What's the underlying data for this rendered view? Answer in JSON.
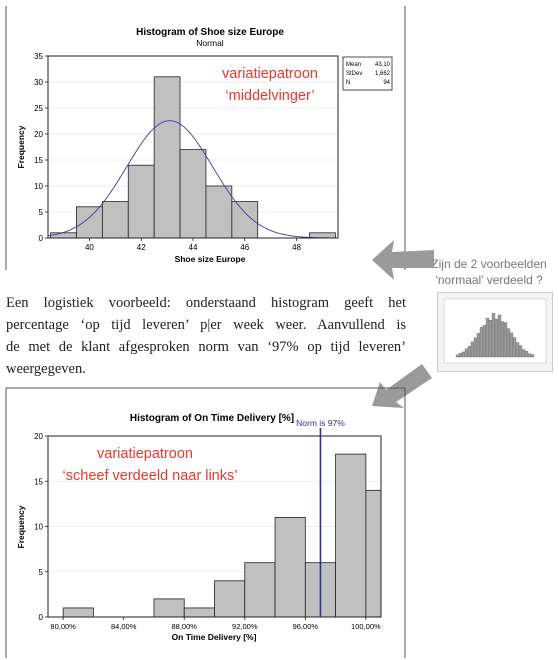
{
  "chart_data": [
    {
      "type": "bar",
      "title": "Histogram of Shoe size Europe",
      "subtitle": "Normal",
      "xlabel": "Shoe size Europe",
      "ylabel": "Frequency",
      "xlim": [
        38.4,
        49.6
      ],
      "ylim": [
        0,
        35
      ],
      "xticks": [
        40,
        42,
        44,
        46,
        48
      ],
      "yticks": [
        0,
        5,
        10,
        15,
        20,
        25,
        30,
        35
      ],
      "bins": [
        {
          "x0": 38.5,
          "x1": 39.5,
          "value": 1
        },
        {
          "x0": 39.5,
          "x1": 40.5,
          "value": 6
        },
        {
          "x0": 40.5,
          "x1": 41.5,
          "value": 7
        },
        {
          "x0": 41.5,
          "x1": 42.5,
          "value": 14
        },
        {
          "x0": 42.5,
          "x1": 43.5,
          "value": 31
        },
        {
          "x0": 43.5,
          "x1": 44.5,
          "value": 17
        },
        {
          "x0": 44.5,
          "x1": 45.5,
          "value": 10
        },
        {
          "x0": 45.5,
          "x1": 46.5,
          "value": 7
        },
        {
          "x0": 46.5,
          "x1": 47.5,
          "value": 0
        },
        {
          "x0": 47.5,
          "x1": 48.5,
          "value": 0
        },
        {
          "x0": 48.5,
          "x1": 49.5,
          "value": 1
        }
      ],
      "fit_curve": {
        "type": "normal",
        "mean": 43.1,
        "stdev": 1.662,
        "n": 94,
        "binwidth": 1,
        "color": "#3a3fa0"
      },
      "stats": [
        {
          "label": "Mean",
          "value": "43,10"
        },
        {
          "label": "StDev",
          "value": "1,662"
        },
        {
          "label": "N",
          "value": "94"
        }
      ],
      "annotation": [
        "variatiepatroon",
        "‘middelvinger’"
      ],
      "annotation_color": "#e8392b",
      "bar_color": "#c0c0c0"
    },
    {
      "type": "bar",
      "title": "Histogram of On Time Delivery [%]",
      "xlabel": "On Time Delivery [%]",
      "ylabel": "Frequency",
      "xlim": [
        79,
        101
      ],
      "ylim": [
        0,
        20
      ],
      "xticks": [
        80,
        84,
        88,
        92,
        96,
        100
      ],
      "xtick_labels": [
        "80,00%",
        "84,00%",
        "88,00%",
        "92,00%",
        "96,00%",
        "100,00%"
      ],
      "yticks": [
        0,
        5,
        10,
        15,
        20
      ],
      "bins": [
        {
          "x0": 80,
          "x1": 82,
          "value": 1
        },
        {
          "x0": 82,
          "x1": 84,
          "value": 0
        },
        {
          "x0": 84,
          "x1": 86,
          "value": 0
        },
        {
          "x0": 86,
          "x1": 88,
          "value": 2
        },
        {
          "x0": 88,
          "x1": 90,
          "value": 1
        },
        {
          "x0": 90,
          "x1": 92,
          "value": 4
        },
        {
          "x0": 92,
          "x1": 94,
          "value": 6
        },
        {
          "x0": 94,
          "x1": 96,
          "value": 11
        },
        {
          "x0": 96,
          "x1": 98,
          "value": 6
        },
        {
          "x0": 98,
          "x1": 100,
          "value": 18
        },
        {
          "x0": 100,
          "x1": 102,
          "value": 14
        }
      ],
      "reference_line": {
        "x": 97,
        "label": "Norm is 97%",
        "color": "#2b2f8f"
      },
      "annotation": [
        "variatiepatroon",
        "‘scheef verdeeld naar links’"
      ],
      "annotation_color": "#e8392b",
      "bar_color": "#c0c0c0"
    }
  ],
  "text": {
    "paragraph_lines": [
      "Een logistiek voorbeeld: onderstaand histogram geeft het",
      "percentage ‘op tijd leveren’ p|er week weer. Aanvullend is",
      "de met de klant afgesproken norm van ‘97% op tijd leveren’",
      "weergegeven."
    ],
    "question": [
      "Zijn de 2 voorbeelden",
      "‘normaal’ verdeeld ?"
    ]
  },
  "colors": {
    "arrow": "#9a9a9a",
    "frame": "#555555"
  }
}
